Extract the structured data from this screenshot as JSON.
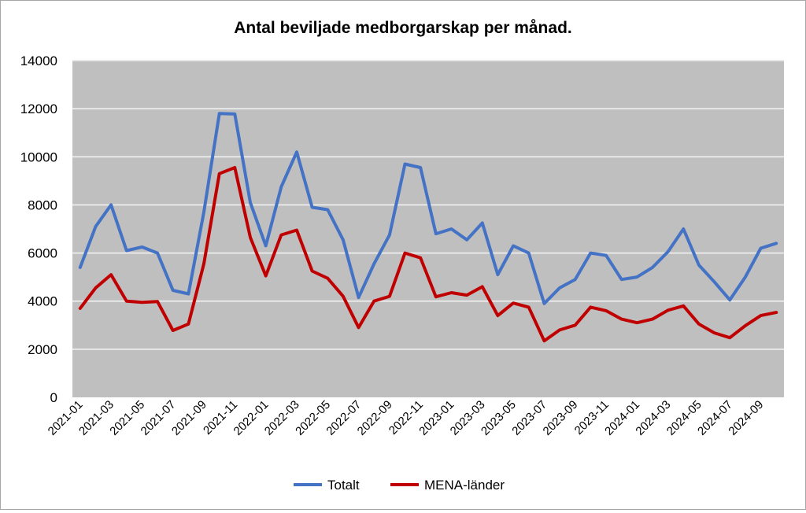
{
  "chart_data": {
    "type": "line",
    "title": "Antal beviljade medborgarskap per månad.",
    "xlabel": "",
    "ylabel": "",
    "ylim": [
      0,
      14000
    ],
    "yticks": [
      "0",
      "2000",
      "4000",
      "6000",
      "8000",
      "10000",
      "12000",
      "14000"
    ],
    "grid": true,
    "legend_position": "bottom",
    "x": [
      "2021-01",
      "2021-02",
      "2021-03",
      "2021-04",
      "2021-05",
      "2021-06",
      "2021-07",
      "2021-08",
      "2021-09",
      "2021-10",
      "2021-11",
      "2021-12",
      "2022-01",
      "2022-02",
      "2022-03",
      "2022-04",
      "2022-05",
      "2022-06",
      "2022-07",
      "2022-08",
      "2022-09",
      "2022-10",
      "2022-11",
      "2022-12",
      "2023-01",
      "2023-02",
      "2023-03",
      "2023-04",
      "2023-05",
      "2023-06",
      "2023-07",
      "2023-08",
      "2023-09",
      "2023-10",
      "2023-11",
      "2023-12",
      "2024-01",
      "2024-02",
      "2024-03",
      "2024-04",
      "2024-05",
      "2024-06",
      "2024-07",
      "2024-08",
      "2024-09",
      "2024-10"
    ],
    "series": [
      {
        "name": "Totalt",
        "color": "#4472c4",
        "values": [
          5400,
          7100,
          8000,
          6100,
          6250,
          6000,
          4450,
          4300,
          7700,
          11800,
          11780,
          8100,
          6300,
          8750,
          10200,
          7900,
          7800,
          6550,
          4150,
          5550,
          6750,
          9700,
          9550,
          6800,
          7000,
          6550,
          7250,
          5100,
          6300,
          6000,
          3900,
          4550,
          4900,
          6000,
          5900,
          4900,
          5000,
          5400,
          6050,
          7000,
          5500,
          4800,
          4050,
          5000,
          6200,
          6400
        ]
      },
      {
        "name": "MENA-länder",
        "color": "#c00000",
        "values": [
          3700,
          4550,
          5100,
          4000,
          3950,
          3980,
          2780,
          3050,
          5550,
          9300,
          9550,
          6650,
          5050,
          6750,
          6950,
          5250,
          4950,
          4200,
          2900,
          4000,
          4200,
          6000,
          5800,
          4180,
          4350,
          4250,
          4600,
          3400,
          3920,
          3750,
          2350,
          2800,
          3000,
          3750,
          3600,
          3250,
          3100,
          3250,
          3620,
          3800,
          3050,
          2680,
          2480,
          2980,
          3400,
          3530
        ]
      }
    ]
  }
}
